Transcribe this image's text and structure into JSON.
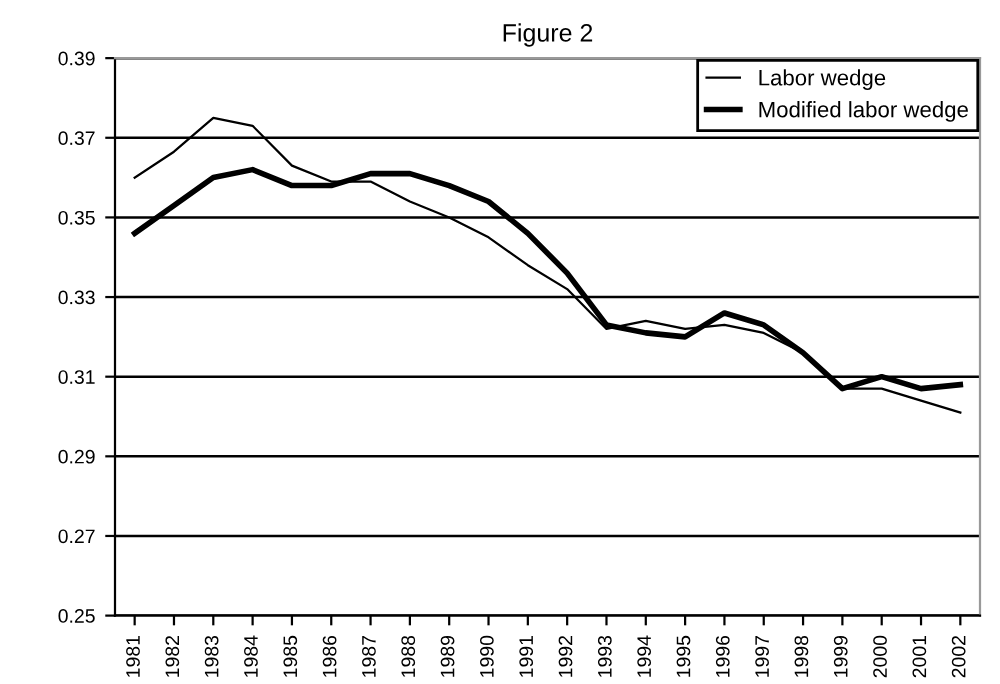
{
  "chart_data": {
    "type": "line",
    "title": "Figure 2",
    "categories": [
      "1981",
      "1982",
      "1983",
      "1984",
      "1985",
      "1986",
      "1987",
      "1988",
      "1989",
      "1990",
      "1991",
      "1992",
      "1993",
      "1994",
      "1995",
      "1996",
      "1997",
      "1998",
      "1999",
      "2000",
      "2001",
      "2002"
    ],
    "series": [
      {
        "name": "Labor wedge",
        "color": "#000000",
        "values": [
          0.36,
          0.3665,
          0.375,
          0.373,
          0.363,
          0.359,
          0.359,
          0.354,
          0.35,
          0.345,
          0.338,
          0.332,
          0.322,
          0.324,
          0.322,
          0.323,
          0.321,
          0.316,
          0.307,
          0.307,
          0.304,
          0.301
        ]
      },
      {
        "name": "Modified labor wedge",
        "color": "#000000",
        "values": [
          0.346,
          0.353,
          0.36,
          0.362,
          0.358,
          0.358,
          0.361,
          0.361,
          0.358,
          0.354,
          0.346,
          0.336,
          0.323,
          0.321,
          0.32,
          0.326,
          0.323,
          0.316,
          0.307,
          0.31,
          0.307,
          0.308
        ]
      }
    ],
    "ylim": [
      0.25,
      0.39
    ],
    "yticks": [
      0.25,
      0.27,
      0.29,
      0.31,
      0.33,
      0.35,
      0.37,
      0.39
    ],
    "grid": "y",
    "legend": "top right",
    "marker": "none",
    "line_style": "solid"
  }
}
